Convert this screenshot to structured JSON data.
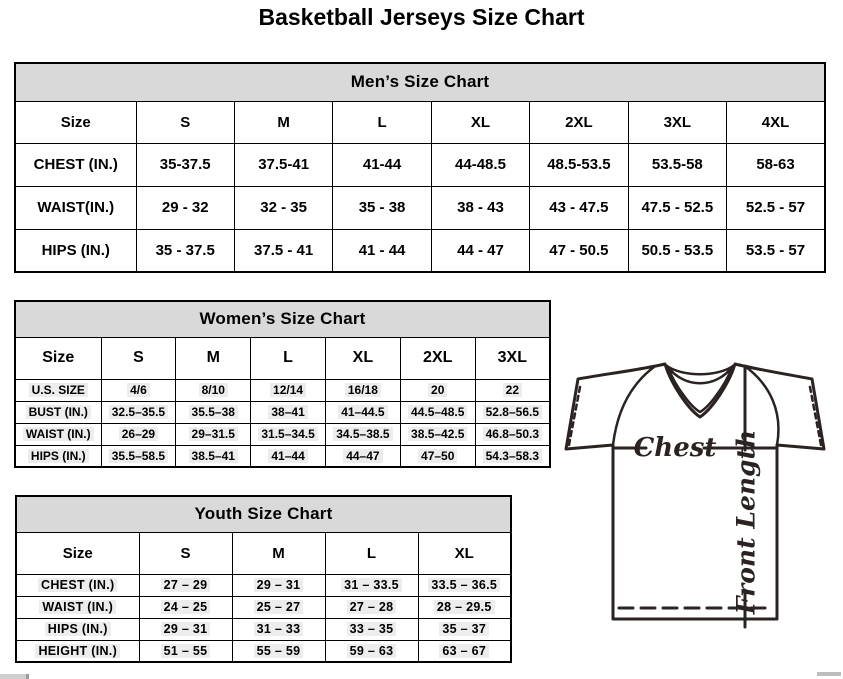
{
  "title": "Basketball Jerseys Size Chart",
  "tables": {
    "men": {
      "title": "Men’s Size Chart",
      "columns": [
        "Size",
        "S",
        "M",
        "L",
        "XL",
        "2XL",
        "3XL",
        "4XL"
      ],
      "rows": [
        {
          "label": "CHEST (IN.)",
          "values": [
            "35-37.5",
            "37.5-41",
            "41-44",
            "44-48.5",
            "48.5-53.5",
            "53.5-58",
            "58-63"
          ]
        },
        {
          "label": "WAIST(IN.)",
          "values": [
            "29 - 32",
            "32 - 35",
            "35 - 38",
            "38 - 43",
            "43 - 47.5",
            "47.5 - 52.5",
            "52.5 - 57"
          ]
        },
        {
          "label": "HIPS (IN.)",
          "values": [
            "35 - 37.5",
            "37.5 - 41",
            "41 - 44",
            "44 - 47",
            "47 - 50.5",
            "50.5 - 53.5",
            "53.5 - 57"
          ]
        }
      ]
    },
    "women": {
      "title": "Women’s Size Chart",
      "columns": [
        "Size",
        "S",
        "M",
        "L",
        "XL",
        "2XL",
        "3XL"
      ],
      "rows": [
        {
          "label": "U.S. SIZE",
          "values": [
            "4/6",
            "8/10",
            "12/14",
            "16/18",
            "20",
            "22"
          ]
        },
        {
          "label": "BUST (IN.)",
          "values": [
            "32.5–35.5",
            "35.5–38",
            "38–41",
            "41–44.5",
            "44.5–48.5",
            "52.8–56.5"
          ]
        },
        {
          "label": "WAIST (IN.)",
          "values": [
            "26–29",
            "29–31.5",
            "31.5–34.5",
            "34.5–38.5",
            "38.5–42.5",
            "46.8–50.3"
          ]
        },
        {
          "label": "HIPS (IN.)",
          "values": [
            "35.5–58.5",
            "38.5–41",
            "41–44",
            "44–47",
            "47–50",
            "54.3–58.3"
          ]
        }
      ]
    },
    "youth": {
      "title": "Youth Size Chart",
      "columns": [
        "Size",
        "S",
        "M",
        "L",
        "XL"
      ],
      "rows": [
        {
          "label": "CHEST (IN.)",
          "values": [
            "27 – 29",
            "29 – 31",
            "31 – 33.5",
            "33.5 – 36.5"
          ]
        },
        {
          "label": "WAIST (IN.)",
          "values": [
            "24 – 25",
            "25 – 27",
            "27 – 28",
            "28 – 29.5"
          ]
        },
        {
          "label": "HIPS (IN.)",
          "values": [
            "29 – 31",
            "31 – 33",
            "33 – 35",
            "35 – 37"
          ]
        },
        {
          "label": "HEIGHT (IN.)",
          "values": [
            "51 – 55",
            "55 – 59",
            "59 – 63",
            "63 – 67"
          ]
        }
      ]
    }
  },
  "diagram": {
    "chest_label": "Chest",
    "front_length_label": "Front Length"
  },
  "colors": {
    "caption_bg": "#d9d9d9",
    "table_border": "#000000",
    "cell_highlight": "#ededed",
    "diagram_line": "#2a2321"
  }
}
